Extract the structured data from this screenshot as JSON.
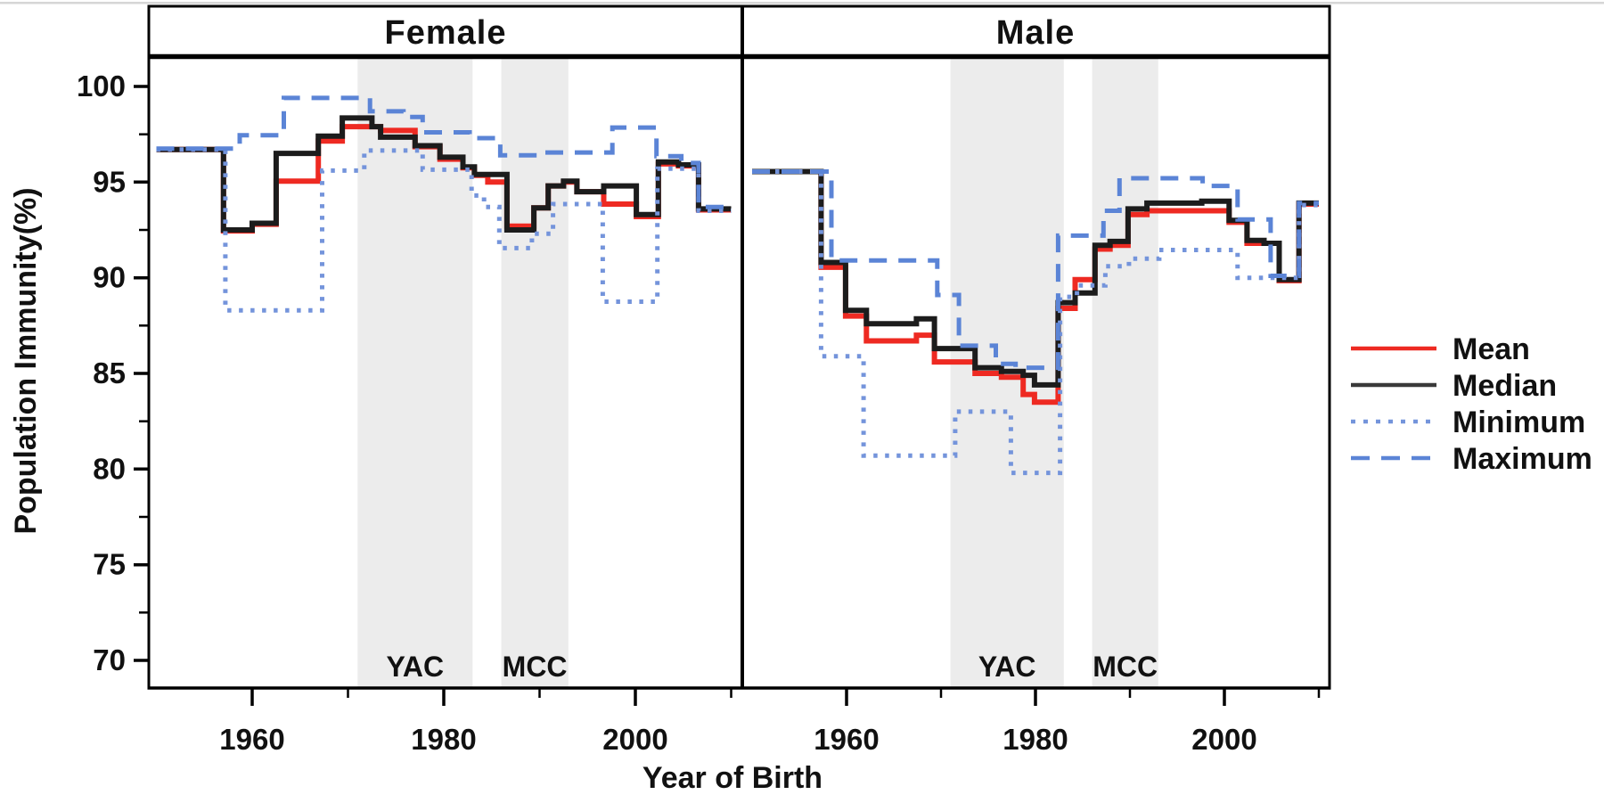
{
  "colors": {
    "mean": "#ee2a22",
    "median": "#1c1c1c",
    "minimum": "#7494db",
    "maximum": "#5b84d6",
    "band": "#ececec",
    "band_label": "#6e6e6e",
    "frame": "#000000",
    "edge_artifact": "#d6d6d6"
  },
  "chart_data": {
    "type": "line",
    "subtype": "step",
    "title": "",
    "xlabel": "Year of Birth",
    "ylabel": "Population Immunity(%)",
    "x_start": 1950,
    "x_end": 2010,
    "x_ticks_major": [
      1960,
      1980,
      2000
    ],
    "x_ticks_minor": [
      1970,
      1990,
      2010
    ],
    "y_ticks_major": [
      70,
      75,
      80,
      85,
      90,
      95,
      100
    ],
    "y_ticks_minor": [
      72.5,
      77.5,
      82.5,
      87.5,
      92.5,
      97.5
    ],
    "ylim": [
      68.5,
      101.5
    ],
    "grid": false,
    "legend_position": "right-outside",
    "legend": [
      {
        "label": "Mean",
        "key": "mean",
        "style": "solid"
      },
      {
        "label": "Median",
        "key": "median",
        "style": "solid"
      },
      {
        "label": "Minimum",
        "key": "minimum",
        "style": "dotted"
      },
      {
        "label": "Maximum",
        "key": "maximum",
        "style": "dashed"
      }
    ],
    "panels": [
      {
        "label": "Female",
        "bands": [
          {
            "label": "YAC",
            "from": 1971,
            "to": 1983
          },
          {
            "label": "MCC",
            "from": 1986,
            "to": 1993
          }
        ],
        "series": {
          "mean": [
            [
              1950,
              96.7
            ],
            [
              1957,
              92.45
            ],
            [
              1960,
              92.8
            ],
            [
              1962.5,
              95.05
            ],
            [
              1966.9,
              97.15
            ],
            [
              1969.4,
              97.9
            ],
            [
              1973.4,
              97.7
            ],
            [
              1977,
              96.85
            ],
            [
              1979.6,
              96.2
            ],
            [
              1982,
              95.75
            ],
            [
              1983.2,
              95.35
            ],
            [
              1984.6,
              95.0
            ],
            [
              1986.6,
              92.7
            ],
            [
              1989.4,
              93.65
            ],
            [
              1990.9,
              94.8
            ],
            [
              1992.5,
              95.0
            ],
            [
              1993.9,
              94.5
            ],
            [
              1996.7,
              93.85
            ],
            [
              2000.1,
              93.2
            ],
            [
              2002.4,
              95.95
            ],
            [
              2004.5,
              95.85
            ],
            [
              2006.6,
              93.55
            ]
          ],
          "median": [
            [
              1950,
              96.7
            ],
            [
              1957,
              92.5
            ],
            [
              1960,
              92.85
            ],
            [
              1962.5,
              96.5
            ],
            [
              1966.9,
              97.4
            ],
            [
              1969.4,
              98.35
            ],
            [
              1972.5,
              97.9
            ],
            [
              1973.4,
              97.35
            ],
            [
              1977,
              96.9
            ],
            [
              1979.6,
              96.3
            ],
            [
              1982,
              95.8
            ],
            [
              1983.2,
              95.4
            ],
            [
              1986.6,
              92.5
            ],
            [
              1989.4,
              93.65
            ],
            [
              1990.9,
              94.8
            ],
            [
              1992.5,
              95.05
            ],
            [
              1993.9,
              94.5
            ],
            [
              1996.7,
              94.8
            ],
            [
              2000.1,
              93.3
            ],
            [
              2002.4,
              96.05
            ],
            [
              2004.5,
              95.9
            ],
            [
              2006.6,
              93.6
            ]
          ],
          "minimum": [
            [
              1950,
              96.7
            ],
            [
              1957.2,
              88.3
            ],
            [
              1967.3,
              95.6
            ],
            [
              1971.7,
              96.65
            ],
            [
              1977.8,
              95.65
            ],
            [
              1982.9,
              94.3
            ],
            [
              1984.2,
              93.7
            ],
            [
              1985.8,
              91.55
            ],
            [
              1989.2,
              92.3
            ],
            [
              1991.4,
              93.85
            ],
            [
              1996.6,
              88.75
            ],
            [
              2002.3,
              95.7
            ],
            [
              2006.6,
              93.5
            ]
          ],
          "maximum": [
            [
              1950,
              96.75
            ],
            [
              1958.7,
              97.45
            ],
            [
              1963.3,
              99.4
            ],
            [
              1972.3,
              98.7
            ],
            [
              1975.8,
              98.4
            ],
            [
              1977.8,
              97.6
            ],
            [
              1982.7,
              97.3
            ],
            [
              1985.9,
              96.4
            ],
            [
              1990.4,
              96.55
            ],
            [
              1997.6,
              97.85
            ],
            [
              2002.2,
              96.35
            ],
            [
              2004.8,
              96.0
            ],
            [
              2006.6,
              93.7
            ]
          ]
        }
      },
      {
        "label": "Male",
        "bands": [
          {
            "label": "YAC",
            "from": 1971,
            "to": 1983
          },
          {
            "label": "MCC",
            "from": 1986,
            "to": 1993
          }
        ],
        "series": {
          "mean": [
            [
              1950,
              95.55
            ],
            [
              1957.3,
              90.55
            ],
            [
              1959.9,
              88.0
            ],
            [
              1962.1,
              86.7
            ],
            [
              1967.4,
              87.0
            ],
            [
              1969.3,
              85.6
            ],
            [
              1973.6,
              85.0
            ],
            [
              1976.4,
              84.8
            ],
            [
              1978.7,
              83.9
            ],
            [
              1979.9,
              83.5
            ],
            [
              1982.4,
              88.4
            ],
            [
              1984.2,
              89.9
            ],
            [
              1986.3,
              91.5
            ],
            [
              1987.9,
              91.7
            ],
            [
              1989.8,
              93.3
            ],
            [
              1991.8,
              93.5
            ],
            [
              2000.5,
              92.9
            ],
            [
              2002.4,
              91.8
            ],
            [
              2005.8,
              89.85
            ],
            [
              2007.9,
              93.85
            ]
          ],
          "median": [
            [
              1950,
              95.55
            ],
            [
              1957.3,
              90.8
            ],
            [
              1959.9,
              88.3
            ],
            [
              1962.1,
              87.6
            ],
            [
              1967.4,
              87.85
            ],
            [
              1969.3,
              86.3
            ],
            [
              1973.6,
              85.3
            ],
            [
              1976.4,
              85.1
            ],
            [
              1978.7,
              84.9
            ],
            [
              1979.9,
              84.4
            ],
            [
              1982.4,
              88.7
            ],
            [
              1984.2,
              89.2
            ],
            [
              1986.3,
              91.7
            ],
            [
              1987.9,
              91.9
            ],
            [
              1989.8,
              93.6
            ],
            [
              1991.8,
              93.9
            ],
            [
              1997.6,
              94.0
            ],
            [
              2000.5,
              93.0
            ],
            [
              2002.4,
              91.95
            ],
            [
              2004.2,
              91.8
            ],
            [
              2005.8,
              89.9
            ],
            [
              2007.9,
              93.9
            ]
          ],
          "minimum": [
            [
              1950,
              95.55
            ],
            [
              1957.3,
              85.9
            ],
            [
              1961.8,
              80.7
            ],
            [
              1971.5,
              83.0
            ],
            [
              1977.4,
              79.8
            ],
            [
              1982.6,
              89.0
            ],
            [
              1984.4,
              89.6
            ],
            [
              1987.4,
              90.6
            ],
            [
              1989.9,
              91.0
            ],
            [
              1993.1,
              91.45
            ],
            [
              2001.4,
              90.0
            ],
            [
              2007.9,
              93.8
            ]
          ],
          "maximum": [
            [
              1950,
              95.55
            ],
            [
              1958.4,
              90.9
            ],
            [
              1969.6,
              89.1
            ],
            [
              1971.9,
              86.45
            ],
            [
              1975.8,
              85.5
            ],
            [
              1977.9,
              85.3
            ],
            [
              1982.4,
              92.2
            ],
            [
              1987.2,
              93.5
            ],
            [
              1988.9,
              95.2
            ],
            [
              1997.7,
              94.8
            ],
            [
              2001.4,
              93.05
            ],
            [
              2004.9,
              90.1
            ],
            [
              2007.9,
              93.9
            ]
          ]
        }
      }
    ]
  }
}
